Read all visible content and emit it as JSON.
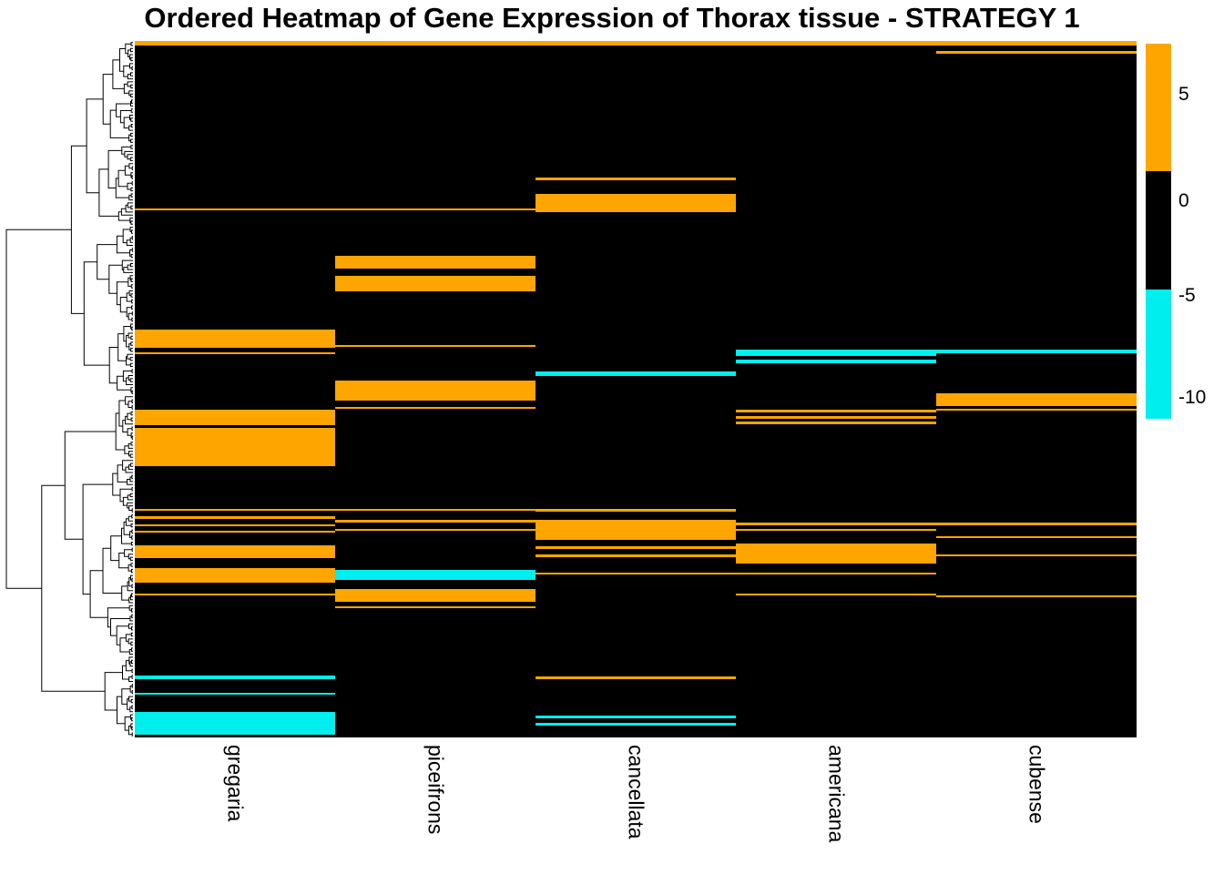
{
  "chart_data": {
    "type": "heatmap",
    "title": "Ordered Heatmap of Gene Expression of Thorax tissue - STRATEGY 1",
    "columns": [
      "gregaria",
      "piceifrons",
      "cancellata",
      "americana",
      "cubense"
    ],
    "row_labels_shown": false,
    "encoding_note": "Rows are hundreds of hierarchically clustered genes (labels not shown). bands lists non-black row regions per column as [top_fraction, bottom_fraction, value]; h = high expression (orange), l = low expression (cyan); remaining cells are ~0 (black).",
    "dendrogram": {
      "orientation": "left",
      "leaves": 230,
      "seed": 11
    },
    "colorbar": {
      "high_color": "#FFA500",
      "mid_color": "#000000",
      "low_color": "#00EEEE",
      "ticks": [
        {
          "label": "5",
          "pos": 0.136
        },
        {
          "label": "0",
          "pos": 0.42
        },
        {
          "label": "-5",
          "pos": 0.672
        },
        {
          "label": "-10",
          "pos": 0.944
        }
      ],
      "segments": [
        {
          "color": "high",
          "from": 0.0,
          "to": 0.34
        },
        {
          "color": "mid",
          "from": 0.34,
          "to": 0.655
        },
        {
          "color": "low",
          "from": 0.655,
          "to": 1.0
        }
      ],
      "value_range": [
        -11,
        7.5
      ],
      "legend_position": "right"
    },
    "bands": {
      "gregaria": [
        [
          0,
          0.007,
          "h"
        ],
        [
          0.24,
          0.243,
          "h"
        ],
        [
          0.414,
          0.44,
          "h"
        ],
        [
          0.447,
          0.45,
          "h"
        ],
        [
          0.529,
          0.551,
          "h"
        ],
        [
          0.555,
          0.61,
          "h"
        ],
        [
          0.672,
          0.675,
          "h"
        ],
        [
          0.682,
          0.686,
          "h"
        ],
        [
          0.694,
          0.697,
          "h"
        ],
        [
          0.703,
          0.706,
          "h"
        ],
        [
          0.724,
          0.743,
          "h"
        ],
        [
          0.757,
          0.778,
          "h"
        ],
        [
          0.793,
          0.796,
          "h"
        ],
        [
          0.911,
          0.917,
          "l"
        ],
        [
          0.936,
          0.939,
          "l"
        ],
        [
          0.963,
          0.996,
          "l"
        ]
      ],
      "piceifrons": [
        [
          0,
          0.007,
          "h"
        ],
        [
          0.24,
          0.243,
          "h"
        ],
        [
          0.308,
          0.327,
          "h"
        ],
        [
          0.337,
          0.36,
          "h"
        ],
        [
          0.436,
          0.439,
          "h"
        ],
        [
          0.488,
          0.516,
          "h"
        ],
        [
          0.525,
          0.528,
          "h"
        ],
        [
          0.672,
          0.675,
          "h"
        ],
        [
          0.688,
          0.692,
          "h"
        ],
        [
          0.7,
          0.703,
          "h"
        ],
        [
          0.759,
          0.774,
          "l"
        ],
        [
          0.787,
          0.805,
          "h"
        ],
        [
          0.812,
          0.815,
          "h"
        ]
      ],
      "cancellata": [
        [
          0,
          0.007,
          "h"
        ],
        [
          0.196,
          0.2,
          "h"
        ],
        [
          0.22,
          0.246,
          "h"
        ],
        [
          0.474,
          0.481,
          "l"
        ],
        [
          0.672,
          0.676,
          "h"
        ],
        [
          0.687,
          0.716,
          "h"
        ],
        [
          0.726,
          0.73,
          "h"
        ],
        [
          0.737,
          0.741,
          "h"
        ],
        [
          0.763,
          0.766,
          "h"
        ],
        [
          0.913,
          0.916,
          "h"
        ],
        [
          0.969,
          0.973,
          "l"
        ],
        [
          0.979,
          0.983,
          "l"
        ]
      ],
      "americana": [
        [
          0,
          0.007,
          "h"
        ],
        [
          0.443,
          0.452,
          "l"
        ],
        [
          0.457,
          0.463,
          "l"
        ],
        [
          0.53,
          0.533,
          "h"
        ],
        [
          0.539,
          0.542,
          "h"
        ],
        [
          0.547,
          0.55,
          "h"
        ],
        [
          0.692,
          0.695,
          "h"
        ],
        [
          0.7,
          0.703,
          "h"
        ],
        [
          0.722,
          0.75,
          "h"
        ],
        [
          0.763,
          0.766,
          "h"
        ],
        [
          0.793,
          0.796,
          "h"
        ]
      ],
      "cubense": [
        [
          0,
          0.006,
          "h"
        ],
        [
          0.015,
          0.018,
          "h"
        ],
        [
          0.443,
          0.448,
          "l"
        ],
        [
          0.506,
          0.524,
          "h"
        ],
        [
          0.528,
          0.531,
          "h"
        ],
        [
          0.692,
          0.695,
          "h"
        ],
        [
          0.711,
          0.714,
          "h"
        ],
        [
          0.737,
          0.74,
          "h"
        ],
        [
          0.796,
          0.799,
          "h"
        ]
      ]
    }
  }
}
